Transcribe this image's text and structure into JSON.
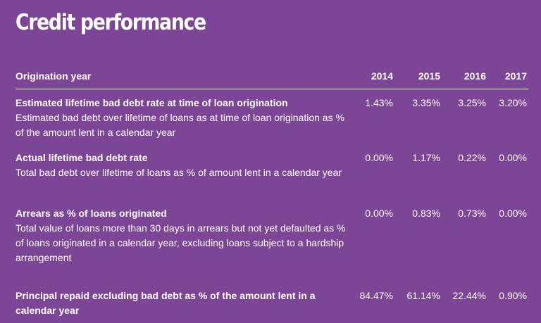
{
  "title": "Credit performance",
  "header": {
    "label": "Origination year",
    "years": [
      "2014",
      "2015",
      "2016",
      "2017"
    ]
  },
  "rows": [
    {
      "title": "Estimated lifetime bad debt rate at time of loan origination",
      "description": "Estimated bad debt over lifetime of loans as at time of loan origination as % of the amount lent in a calendar year",
      "values": [
        "1.43%",
        "3.35%",
        "3.25%",
        "3.20%"
      ]
    },
    {
      "title": "Actual lifetime bad debt rate",
      "description": "Total bad debt over lifetime of loans as % of amount lent in a calendar year",
      "values": [
        "0.00%",
        "1.17%",
        "0.22%",
        "0.00%"
      ]
    },
    {
      "title": "Arrears as % of loans originated",
      "description": "Total value of loans more than 30 days in arrears but not yet defaulted as % of loans originated in a calendar year, excluding loans subject to a hardship arrangement",
      "values": [
        "0.00%",
        "0.83%",
        "0.73%",
        "0.00%"
      ]
    },
    {
      "title": "Principal repaid excluding bad debt as % of the amount lent in a calendar year",
      "values": [
        "84.47%",
        "61.14%",
        "22.44%",
        "0.90%"
      ]
    }
  ]
}
